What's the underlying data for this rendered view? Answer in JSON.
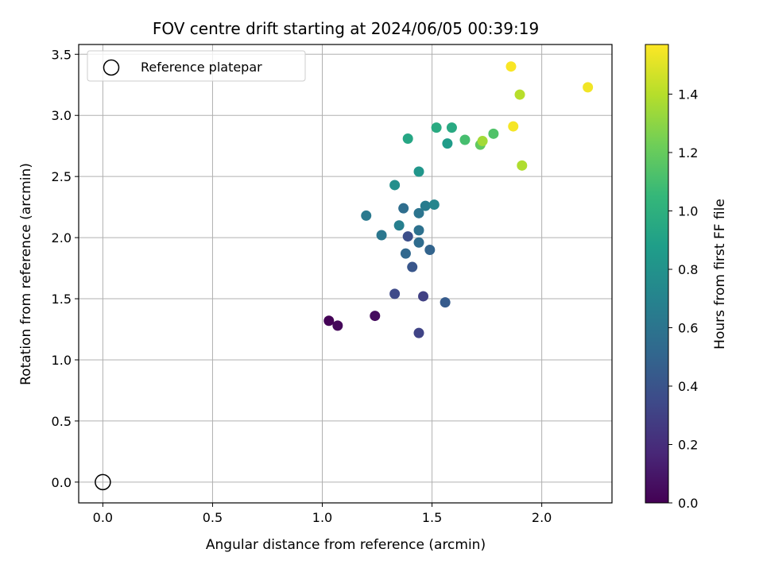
{
  "chart_data": {
    "type": "scatter",
    "title": "FOV centre drift starting at 2024/06/05 00:39:19",
    "xlabel": "Angular distance from reference (arcmin)",
    "ylabel": "Rotation from reference (arcmin)",
    "xlim": [
      -0.11,
      2.32
    ],
    "ylim": [
      -0.17,
      3.58
    ],
    "xticks": [
      0.0,
      0.5,
      1.0,
      1.5,
      2.0
    ],
    "xtick_labels": [
      "0.0",
      "0.5",
      "1.0",
      "1.5",
      "2.0"
    ],
    "yticks": [
      0.0,
      0.5,
      1.0,
      1.5,
      2.0,
      2.5,
      3.0,
      3.5
    ],
    "ytick_labels": [
      "0.0",
      "0.5",
      "1.0",
      "1.5",
      "2.0",
      "2.5",
      "3.0",
      "3.5"
    ],
    "grid": true,
    "legend": {
      "placement": "upper-left",
      "entries": [
        "Reference platepar"
      ]
    },
    "reference_point": {
      "name": "Reference platepar",
      "x": 0.0,
      "y": 0.0
    },
    "colorbar": {
      "label": "Hours from first FF file",
      "colormap": "viridis",
      "range": [
        0.0,
        1.57
      ],
      "ticks": [
        0.0,
        0.2,
        0.4,
        0.6,
        0.8,
        1.0,
        1.2,
        1.4
      ],
      "tick_labels": [
        "0.0",
        "0.2",
        "0.4",
        "0.6",
        "0.8",
        "1.0",
        "1.2",
        "1.4"
      ]
    },
    "points": [
      {
        "x": 1.03,
        "y": 1.32,
        "hours": 0.01
      },
      {
        "x": 1.07,
        "y": 1.28,
        "hours": 0.03
      },
      {
        "x": 1.24,
        "y": 1.36,
        "hours": 0.05
      },
      {
        "x": 1.44,
        "y": 1.22,
        "hours": 0.32
      },
      {
        "x": 1.33,
        "y": 1.54,
        "hours": 0.35
      },
      {
        "x": 1.46,
        "y": 1.52,
        "hours": 0.3
      },
      {
        "x": 1.56,
        "y": 1.47,
        "hours": 0.45
      },
      {
        "x": 1.41,
        "y": 1.76,
        "hours": 0.42
      },
      {
        "x": 1.38,
        "y": 1.87,
        "hours": 0.52
      },
      {
        "x": 1.39,
        "y": 2.01,
        "hours": 0.38
      },
      {
        "x": 1.44,
        "y": 1.96,
        "hours": 0.55
      },
      {
        "x": 1.49,
        "y": 1.9,
        "hours": 0.5
      },
      {
        "x": 1.27,
        "y": 2.02,
        "hours": 0.62
      },
      {
        "x": 1.35,
        "y": 2.1,
        "hours": 0.68
      },
      {
        "x": 1.44,
        "y": 2.06,
        "hours": 0.58
      },
      {
        "x": 1.2,
        "y": 2.18,
        "hours": 0.64
      },
      {
        "x": 1.37,
        "y": 2.24,
        "hours": 0.56
      },
      {
        "x": 1.44,
        "y": 2.2,
        "hours": 0.6
      },
      {
        "x": 1.47,
        "y": 2.26,
        "hours": 0.66
      },
      {
        "x": 1.51,
        "y": 2.27,
        "hours": 0.72
      },
      {
        "x": 1.33,
        "y": 2.43,
        "hours": 0.78
      },
      {
        "x": 1.44,
        "y": 2.54,
        "hours": 0.82
      },
      {
        "x": 1.39,
        "y": 2.81,
        "hours": 0.93
      },
      {
        "x": 1.52,
        "y": 2.9,
        "hours": 0.96
      },
      {
        "x": 1.57,
        "y": 2.77,
        "hours": 0.86
      },
      {
        "x": 1.59,
        "y": 2.9,
        "hours": 0.95
      },
      {
        "x": 1.65,
        "y": 2.8,
        "hours": 1.1
      },
      {
        "x": 1.72,
        "y": 2.76,
        "hours": 1.18
      },
      {
        "x": 1.78,
        "y": 2.85,
        "hours": 1.13
      },
      {
        "x": 1.73,
        "y": 2.79,
        "hours": 1.35
      },
      {
        "x": 1.91,
        "y": 2.59,
        "hours": 1.38
      },
      {
        "x": 1.87,
        "y": 2.91,
        "hours": 1.55
      },
      {
        "x": 1.86,
        "y": 3.4,
        "hours": 1.56
      },
      {
        "x": 1.9,
        "y": 3.17,
        "hours": 1.4
      },
      {
        "x": 2.21,
        "y": 3.23,
        "hours": 1.54
      }
    ]
  }
}
